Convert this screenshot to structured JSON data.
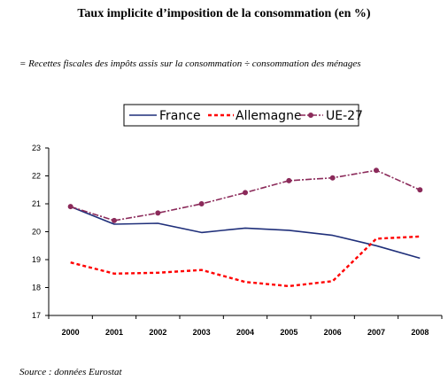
{
  "title": "Taux implicite d’imposition de la consommation (en %)",
  "subtitle": "= Recettes fiscales des impôts assis sur la consommation ÷ consommation des ménages",
  "source": "Source : données Eurostat",
  "colors": {
    "France": "#1f2f7a",
    "Allemagne": "#ff0000",
    "UE-27": "#8b2a5a"
  },
  "chart_data": {
    "type": "line",
    "title": "Taux implicite d’imposition de la consommation (en %)",
    "categories": [
      "2000",
      "2001",
      "2002",
      "2003",
      "2004",
      "2005",
      "2006",
      "2007",
      "2008"
    ],
    "ylim": [
      17,
      23
    ],
    "yticks": [
      "17",
      "18",
      "19",
      "20",
      "21",
      "22",
      "23"
    ],
    "grid": false,
    "legend_position": "top",
    "series": [
      {
        "name": "France",
        "values": [
          20.9,
          20.27,
          20.3,
          19.97,
          20.13,
          20.05,
          19.87,
          19.5,
          19.05
        ],
        "style": "solid"
      },
      {
        "name": "Allemagne",
        "values": [
          18.9,
          18.5,
          18.53,
          18.63,
          18.2,
          18.05,
          18.23,
          19.75,
          19.83
        ],
        "style": "dotted"
      },
      {
        "name": "UE-27",
        "values": [
          20.9,
          20.4,
          20.67,
          21.0,
          21.4,
          21.83,
          21.93,
          22.2,
          21.5
        ],
        "style": "dash-marker"
      }
    ]
  }
}
